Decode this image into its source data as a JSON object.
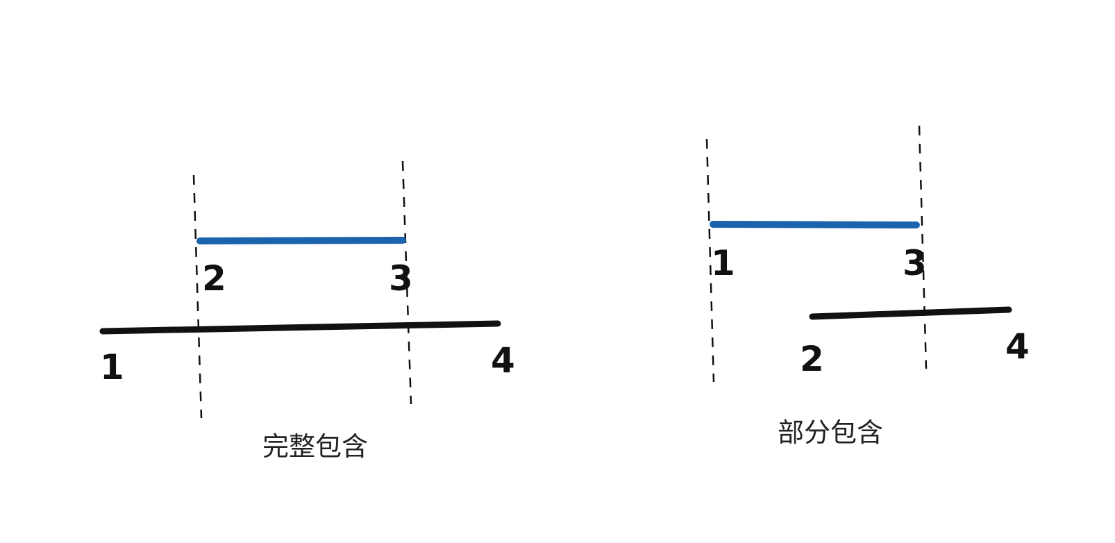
{
  "colors": {
    "background": "#ffffff",
    "outer_interval": "#111111",
    "inner_interval": "#1b63ad",
    "guide": "#111111"
  },
  "left_diagram": {
    "caption": "完整包含",
    "outer_labels": {
      "start": "1",
      "end": "4"
    },
    "inner_labels": {
      "start": "2",
      "end": "3"
    }
  },
  "right_diagram": {
    "caption": "部分包含",
    "top_labels": {
      "start": "1",
      "end": "3"
    },
    "bottom_labels": {
      "start": "2",
      "end": "4"
    }
  }
}
